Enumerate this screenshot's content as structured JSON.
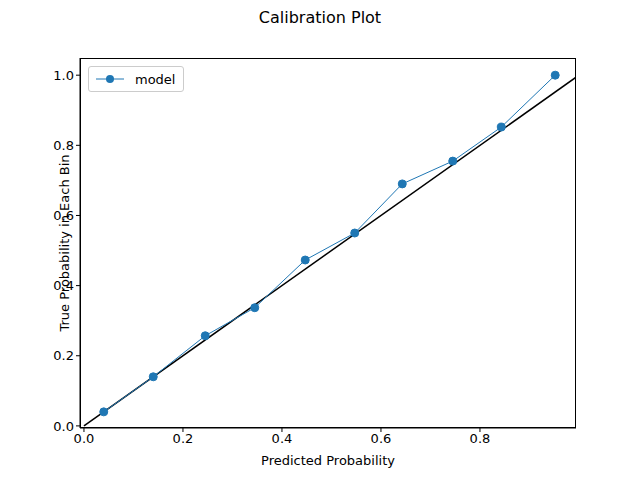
{
  "chart_data": {
    "type": "line",
    "title": "Calibration Plot",
    "x_label": "Predicted Probability",
    "y_label": "True Probability in Each Bin",
    "xlim": [
      -0.008,
      0.994
    ],
    "ylim": [
      -0.006,
      1.049
    ],
    "xticks": [
      {
        "value": 0,
        "label": "0.0"
      },
      {
        "value": 0.2,
        "label": "0.2"
      },
      {
        "value": 0.4,
        "label": "0.4"
      },
      {
        "value": 0.6,
        "label": "0.6"
      },
      {
        "value": 0.8,
        "label": "0.8"
      }
    ],
    "yticks": [
      {
        "value": 0,
        "label": "0.0"
      },
      {
        "value": 0.2,
        "label": "0.2"
      },
      {
        "value": 0.4,
        "label": "0.4"
      },
      {
        "value": 0.6,
        "label": "0.6"
      },
      {
        "value": 0.8,
        "label": "0.8"
      },
      {
        "value": 1,
        "label": "1.0"
      }
    ],
    "grid": false,
    "legend": "upper left",
    "series": [
      {
        "name": "model",
        "color": "#1f77b4",
        "marker": "circle",
        "line_style": "solid",
        "x": [
          0.04,
          0.14,
          0.245,
          0.345,
          0.447,
          0.547,
          0.643,
          0.745,
          0.843,
          0.952
        ],
        "values": [
          0.04,
          0.14,
          0.257,
          0.337,
          0.473,
          0.55,
          0.69,
          0.755,
          0.852,
          1.0
        ]
      }
    ],
    "reference_line": {
      "x": [
        0,
        1
      ],
      "values": [
        0,
        1
      ],
      "color": "#000000",
      "line_style": "solid"
    }
  }
}
